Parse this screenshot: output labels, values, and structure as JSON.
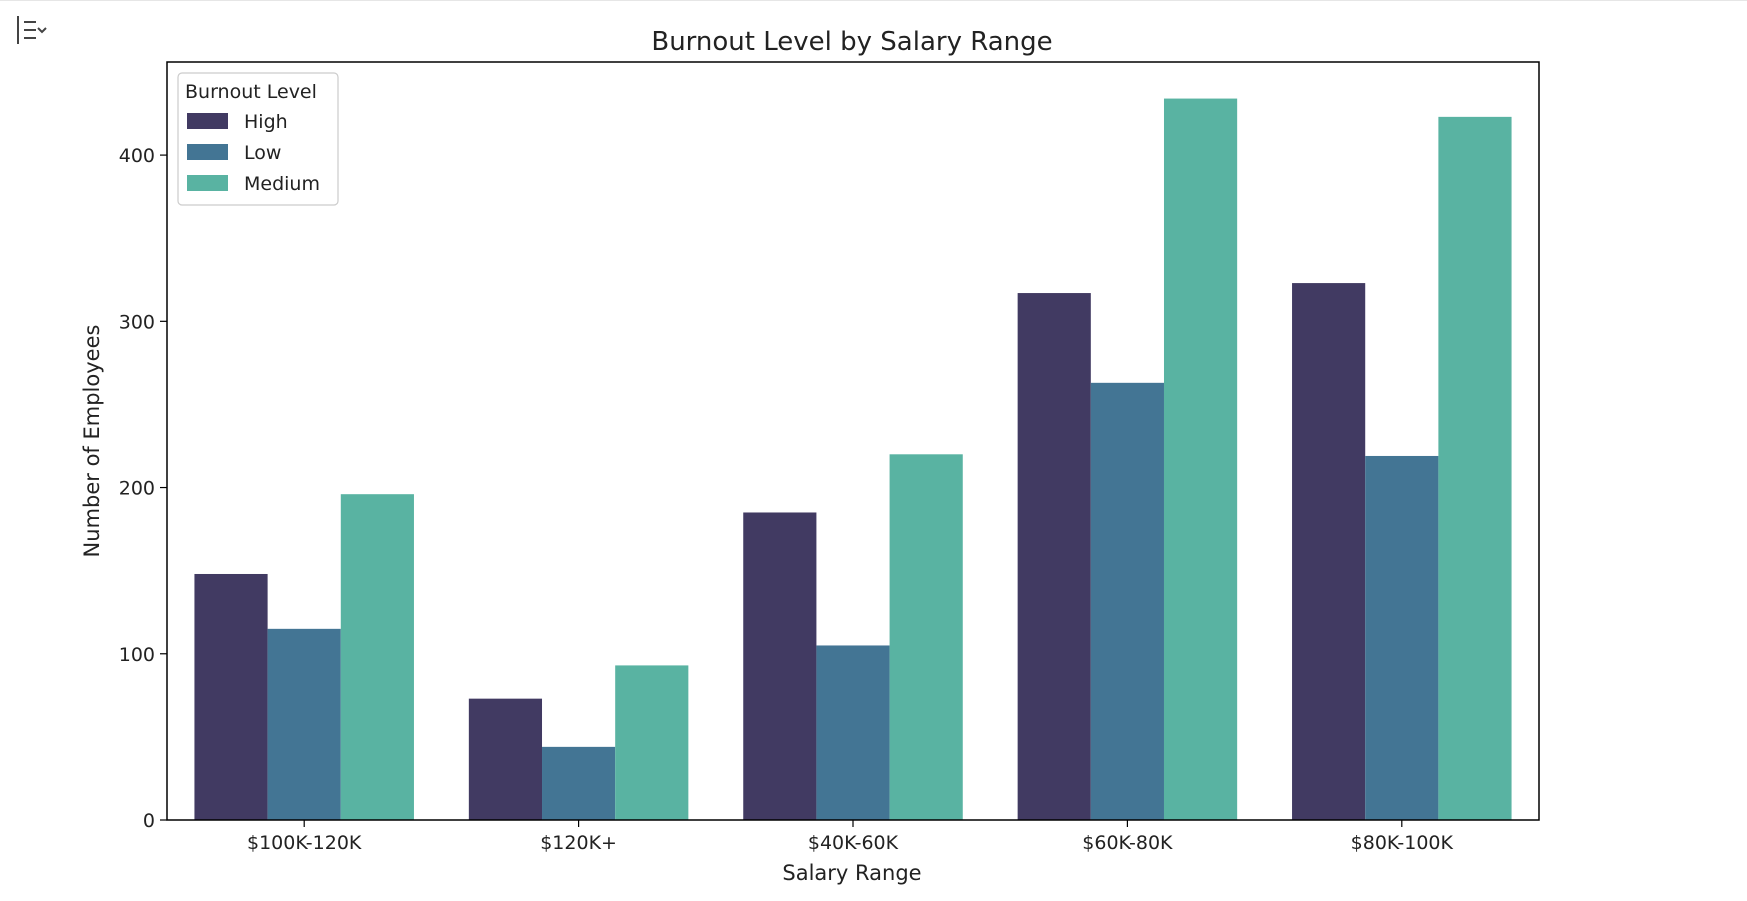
{
  "toolbar": {
    "output_toggle_icon": "output-collapse-icon"
  },
  "chart_data": {
    "type": "bar",
    "title": "Burnout Level by Salary Range",
    "xlabel": "Salary Range",
    "ylabel": "Number of Employees",
    "categories": [
      "$100K-120K",
      "$120K+",
      "$40K-60K",
      "$60K-80K",
      "$80K-100K"
    ],
    "series": [
      {
        "name": "High",
        "color": "#413a62",
        "values": [
          148,
          73,
          185,
          317,
          323
        ]
      },
      {
        "name": "Low",
        "color": "#437594",
        "values": [
          115,
          44,
          105,
          263,
          219
        ]
      },
      {
        "name": "Medium",
        "color": "#59b3a2",
        "values": [
          196,
          93,
          220,
          434,
          423
        ]
      }
    ],
    "ylim": [
      0,
      456
    ],
    "yticks": [
      0,
      100,
      200,
      300,
      400
    ],
    "grid": false,
    "legend": {
      "title": "Burnout Level",
      "placement": "top-left"
    }
  }
}
